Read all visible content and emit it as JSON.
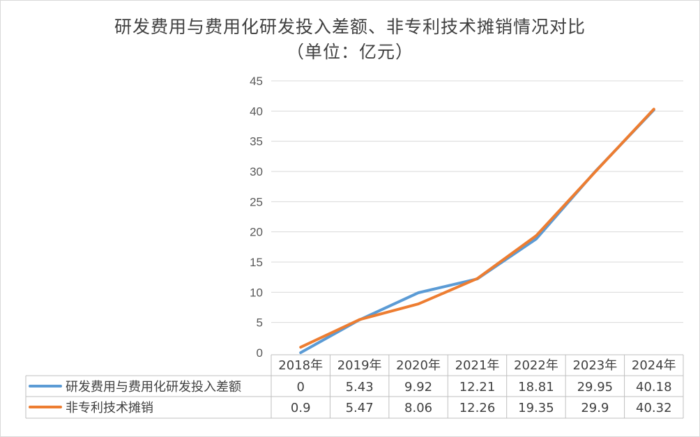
{
  "chart_data": {
    "type": "line",
    "title": "研发费用与费用化研发投入差额、非专利技术摊销情况对比",
    "subtitle": "（单位：亿元）",
    "categories": [
      "2018年",
      "2019年",
      "2020年",
      "2021年",
      "2022年",
      "2023年",
      "2024年"
    ],
    "series": [
      {
        "name": "研发费用与费用化研发投入差额",
        "color": "#5b9bd5",
        "values": [
          0,
          5.43,
          9.92,
          12.21,
          18.81,
          29.95,
          40.18
        ]
      },
      {
        "name": "非专利技术摊销",
        "color": "#ed7d31",
        "values": [
          0.9,
          5.47,
          8.06,
          12.26,
          19.35,
          29.9,
          40.32
        ]
      }
    ],
    "y_ticks": [
      0,
      5,
      10,
      15,
      20,
      25,
      30,
      35,
      40,
      45
    ],
    "ylim": [
      0,
      45
    ],
    "grid": true,
    "legend": "data-table",
    "data_table": true
  }
}
